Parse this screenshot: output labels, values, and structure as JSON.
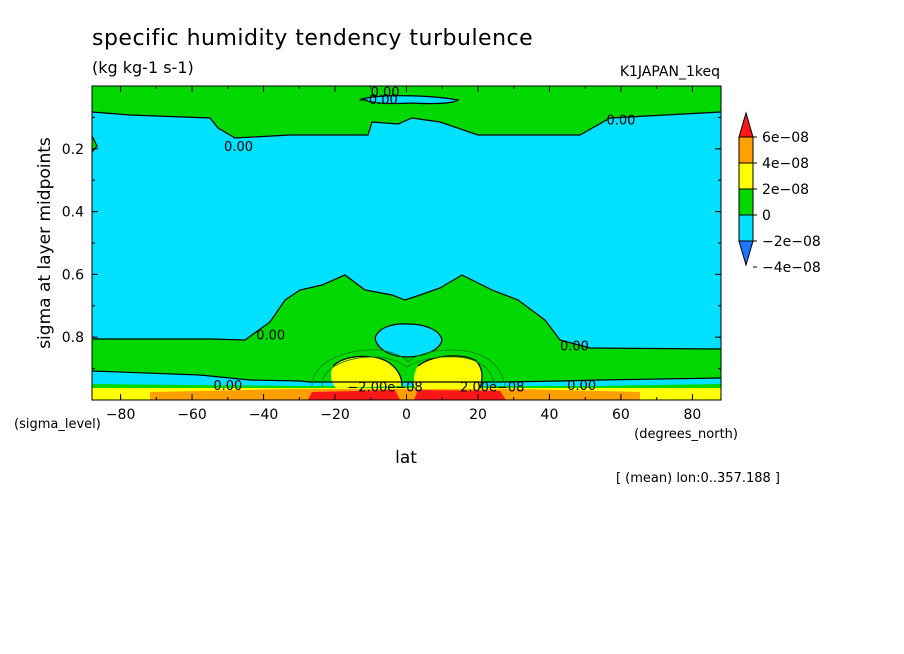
{
  "chart_data": {
    "type": "heatmap",
    "title": "specific humidity tendency turbulence",
    "units": "(kg kg-1 s-1)",
    "run_label": "K1JAPAN_1keq",
    "ylabel": "sigma at layer midpoints",
    "xlabel": "lat",
    "x_axis_name": "(degrees_north)",
    "y_axis_name": "(sigma_level)",
    "footnote": "[ (mean) lon:0..357.188 ]",
    "xlim": [
      -88,
      88
    ],
    "ylim": [
      1.0,
      0.0
    ],
    "x_ticks": [
      -80,
      -60,
      -40,
      -20,
      0,
      20,
      40,
      60,
      80
    ],
    "x_tick_labels": [
      "−80",
      "−60",
      "−40",
      "−20",
      "0",
      "20",
      "40",
      "60",
      "80"
    ],
    "y_ticks": [
      0.2,
      0.4,
      0.6,
      0.8
    ],
    "y_tick_labels": [
      "0.2",
      "0.4",
      "0.6",
      "0.8"
    ],
    "colorbar": {
      "labels": [
        "6e−08",
        "4e−08",
        "2e−08",
        "0",
        "−2e−08",
        "−4e−08"
      ],
      "boundaries": [
        -4e-08,
        -2e-08,
        0,
        2e-08,
        4e-08,
        6e-08
      ],
      "colors": [
        "#1e78ff",
        "#00e0ff",
        "#00d800",
        "#ffff00",
        "#ffa000",
        "#ff1818"
      ]
    },
    "contour_labels": [
      {
        "text": "0.00",
        "lat": -6,
        "sigma": 0.02
      },
      {
        "text": "−0.00",
        "lat": -8,
        "sigma": 0.045
      },
      {
        "text": "0.00",
        "lat": 60,
        "sigma": 0.11
      },
      {
        "text": "0.00",
        "lat": -47,
        "sigma": 0.195
      },
      {
        "text": "0.00",
        "lat": -38,
        "sigma": 0.795
      },
      {
        "text": "0.00",
        "lat": 47,
        "sigma": 0.83
      },
      {
        "text": "0.00",
        "lat": -50,
        "sigma": 0.955
      },
      {
        "text": "0.00",
        "lat": 49,
        "sigma": 0.955
      },
      {
        "text": "−2.00e−08",
        "lat": -6,
        "sigma": 0.96
      },
      {
        "text": "2.00e−08",
        "lat": 24,
        "sigma": 0.96
      }
    ],
    "regions_note": "mostly -2e-08..0 (cyan) in free troposphere; 0..2e-08 (green) near top and lower troposphere; positive maxima (yellow/orange/red) near surface around +/-10 to 25 degrees latitude"
  }
}
